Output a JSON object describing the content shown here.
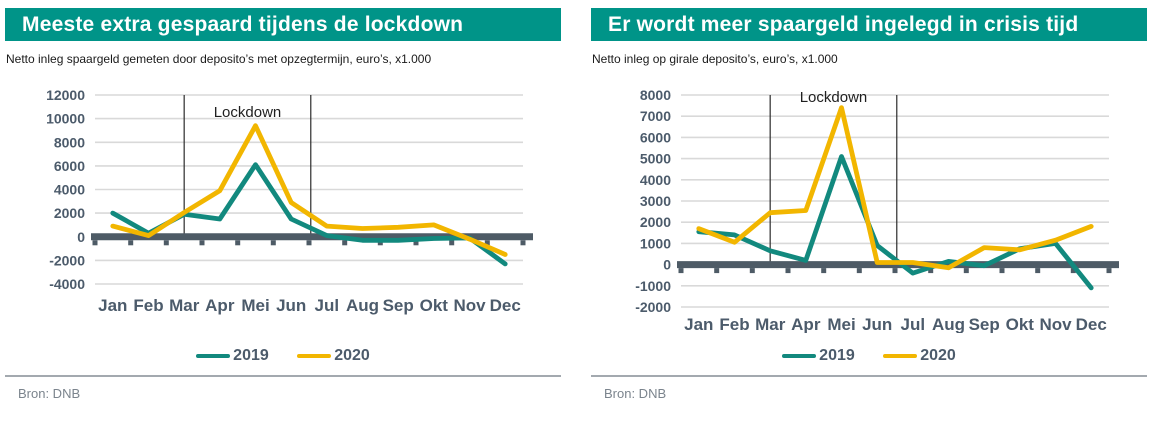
{
  "colors": {
    "header_bg": "#009488",
    "axis": "#4e5b66",
    "grid": "#d9d9d9",
    "tick_label": "#4c5b6b",
    "annotation_line": "#2b2b2b",
    "teal_2019": "#12897e",
    "yellow_2020": "#f2b600"
  },
  "chart_data": [
    {
      "type": "line",
      "title": "Meeste extra gespaard tijdens de lockdown",
      "subtitle": "Netto inleg spaargeld gemeten door deposito’s met opzegtermijn, euro’s, x1.000",
      "source": "Bron: DNB",
      "categories": [
        "Jan",
        "Feb",
        "Mar",
        "Apr",
        "Mei",
        "Jun",
        "Jul",
        "Aug",
        "Sep",
        "Okt",
        "Nov",
        "Dec"
      ],
      "series": [
        {
          "name": "2019",
          "color": "#12897e",
          "values": [
            2000,
            300,
            1900,
            1500,
            6100,
            1500,
            100,
            -300,
            -300,
            -150,
            -100,
            -2300
          ]
        },
        {
          "name": "2020",
          "color": "#f2b600",
          "values": [
            900,
            100,
            2050,
            3900,
            9400,
            2900,
            900,
            700,
            800,
            1000,
            -200,
            -1500
          ]
        }
      ],
      "ylim": [
        -4000,
        12000
      ],
      "ytick_step": 2000,
      "grid": true,
      "legend_position": "bottom",
      "annotation": {
        "label": "Lockdown",
        "x_start_index": 2,
        "x_end_index": 5.55
      },
      "layout": {
        "plot_top": 8,
        "plot_bottom": 197,
        "month_label_y": 224,
        "annotation_dy": 22
      }
    },
    {
      "type": "line",
      "title": "Er wordt meer spaargeld ingelegd in crisis tijd",
      "subtitle": "Netto inleg op girale deposito’s, euro’s, x1.000",
      "source": "Bron: DNB",
      "categories": [
        "Jan",
        "Feb",
        "Mar",
        "Apr",
        "Mei",
        "Jun",
        "Jul",
        "Aug",
        "Sep",
        "Okt",
        "Nov",
        "Dec"
      ],
      "series": [
        {
          "name": "2019",
          "color": "#12897e",
          "values": [
            1550,
            1400,
            650,
            200,
            5100,
            900,
            -400,
            150,
            -50,
            750,
            1000,
            -1100
          ]
        },
        {
          "name": "2020",
          "color": "#f2b600",
          "values": [
            1700,
            1050,
            2450,
            2550,
            7400,
            100,
            100,
            -150,
            800,
            700,
            1150,
            1800
          ]
        }
      ],
      "ylim": [
        -2000,
        8000
      ],
      "ytick_step": 1000,
      "grid": true,
      "legend_position": "bottom",
      "annotation": {
        "label": "Lockdown",
        "x_start_index": 2,
        "x_end_index": 5.55
      },
      "layout": {
        "plot_top": 8,
        "plot_bottom": 220,
        "month_label_y": 243,
        "annotation_dy": 7
      }
    }
  ]
}
